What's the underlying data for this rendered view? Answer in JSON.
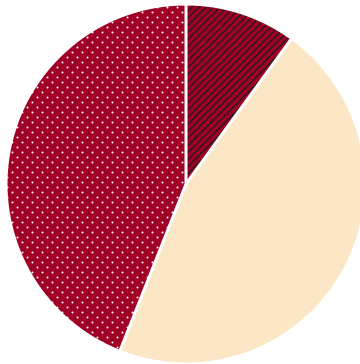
{
  "chart_data": {
    "type": "pie",
    "title": "",
    "start_angle_deg": 0,
    "direction": "clockwise",
    "slices": [
      {
        "value": 10,
        "color": "#a00025",
        "pattern": "diagonal-hatch",
        "pattern_color": "#1a1a1a"
      },
      {
        "value": 46,
        "color": "#fbe6c5",
        "pattern": "none"
      },
      {
        "value": 44,
        "color": "#a00025",
        "pattern": "dots",
        "pattern_color": "#ffffff"
      }
    ],
    "separator_color": "#ffffff"
  }
}
